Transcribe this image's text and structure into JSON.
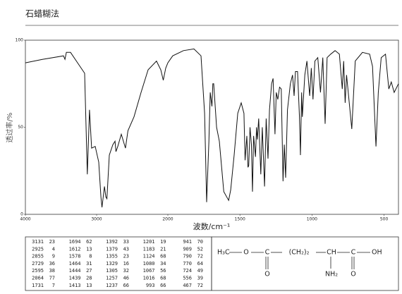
{
  "chart_data": {
    "type": "line",
    "title": "石蜡糊法",
    "xlabel": "波数/cm⁻¹",
    "ylabel": "透过率/%",
    "xlim": [
      4000,
      400
    ],
    "ylim": [
      0,
      100
    ],
    "xticks": [
      4000,
      3000,
      2000,
      1500,
      1000,
      500
    ],
    "yticks": [
      0,
      50,
      100
    ],
    "color": "#111",
    "x": [
      4000,
      3762,
      3465,
      3445,
      3425,
      3366,
      3267,
      3168,
      3131,
      3100,
      3070,
      3020,
      2970,
      2940,
      2925,
      2890,
      2870,
      2855,
      2822,
      2772,
      2742,
      2729,
      2703,
      2653,
      2595,
      2560,
      2475,
      2376,
      2277,
      2159,
      2099,
      2064,
      2030,
      2000,
      1966,
      1892,
      1819,
      1770,
      1745,
      1731,
      1715,
      1706,
      1694,
      1688,
      1682,
      1662,
      1643,
      1612,
      1578,
      1564,
      1540,
      1515,
      1491,
      1472,
      1464,
      1452,
      1444,
      1439,
      1430,
      1420,
      1413,
      1405,
      1392,
      1385,
      1379,
      1370,
      1355,
      1345,
      1329,
      1318,
      1305,
      1295,
      1280,
      1270,
      1257,
      1248,
      1237,
      1225,
      1213,
      1201,
      1192,
      1183,
      1170,
      1150,
      1135,
      1124,
      1115,
      1100,
      1087,
      1080,
      1072,
      1067,
      1050,
      1035,
      1016,
      1005,
      993,
      980,
      960,
      941,
      925,
      909,
      895,
      870,
      840,
      810,
      790,
      780,
      770,
      760,
      724,
      700,
      650,
      600,
      580,
      556,
      540,
      520,
      490,
      467,
      450,
      430,
      400
    ],
    "values": [
      87,
      89,
      91,
      89,
      93,
      93,
      87,
      81,
      23,
      60,
      38,
      39,
      30,
      10,
      4,
      16,
      10,
      9,
      34,
      40,
      42,
      36,
      39,
      46,
      38,
      48,
      56,
      70,
      83,
      88,
      83,
      77,
      84,
      87,
      91,
      94,
      95,
      91,
      58,
      7,
      42,
      70,
      62,
      75,
      75,
      50,
      42,
      13,
      8,
      14,
      34,
      58,
      64,
      58,
      31,
      45,
      27,
      28,
      50,
      40,
      13,
      45,
      33,
      50,
      43,
      55,
      23,
      50,
      16,
      55,
      32,
      60,
      75,
      78,
      46,
      70,
      66,
      73,
      72,
      19,
      40,
      21,
      60,
      75,
      80,
      68,
      82,
      82,
      56,
      34,
      70,
      56,
      80,
      88,
      68,
      84,
      66,
      88,
      90,
      70,
      90,
      52,
      90,
      92,
      94,
      92,
      72,
      88,
      64,
      80,
      49,
      88,
      93,
      92,
      85,
      39,
      70,
      90,
      92,
      72,
      76,
      70,
      75
    ]
  },
  "peak_table": [
    [
      [
        3131,
        23
      ],
      [
        2925,
        4
      ],
      [
        2855,
        9
      ],
      [
        2729,
        36
      ],
      [
        2595,
        38
      ],
      [
        2064,
        77
      ],
      [
        1731,
        7
      ]
    ],
    [
      [
        1694,
        62
      ],
      [
        1612,
        13
      ],
      [
        1578,
        8
      ],
      [
        1464,
        31
      ],
      [
        1444,
        27
      ],
      [
        1439,
        28
      ],
      [
        1413,
        13
      ]
    ],
    [
      [
        1392,
        33
      ],
      [
        1379,
        43
      ],
      [
        1355,
        23
      ],
      [
        1329,
        16
      ],
      [
        1305,
        32
      ],
      [
        1257,
        46
      ],
      [
        1237,
        66
      ]
    ],
    [
      [
        1201,
        19
      ],
      [
        1183,
        21
      ],
      [
        1124,
        68
      ],
      [
        1080,
        34
      ],
      [
        1067,
        56
      ],
      [
        1016,
        68
      ],
      [
        993,
        66
      ]
    ],
    [
      [
        941,
        70
      ],
      [
        909,
        52
      ],
      [
        790,
        72
      ],
      [
        770,
        64
      ],
      [
        724,
        49
      ],
      [
        556,
        39
      ],
      [
        467,
        72
      ]
    ]
  ],
  "structure": {
    "methyl": "H₃C",
    "ether_o": "O",
    "chain": "(CH₂)₂",
    "ch": "CH",
    "c1": "C",
    "o1": "O",
    "c2": "C",
    "o2": "O",
    "oh": "OH",
    "amine": "NH₂"
  }
}
